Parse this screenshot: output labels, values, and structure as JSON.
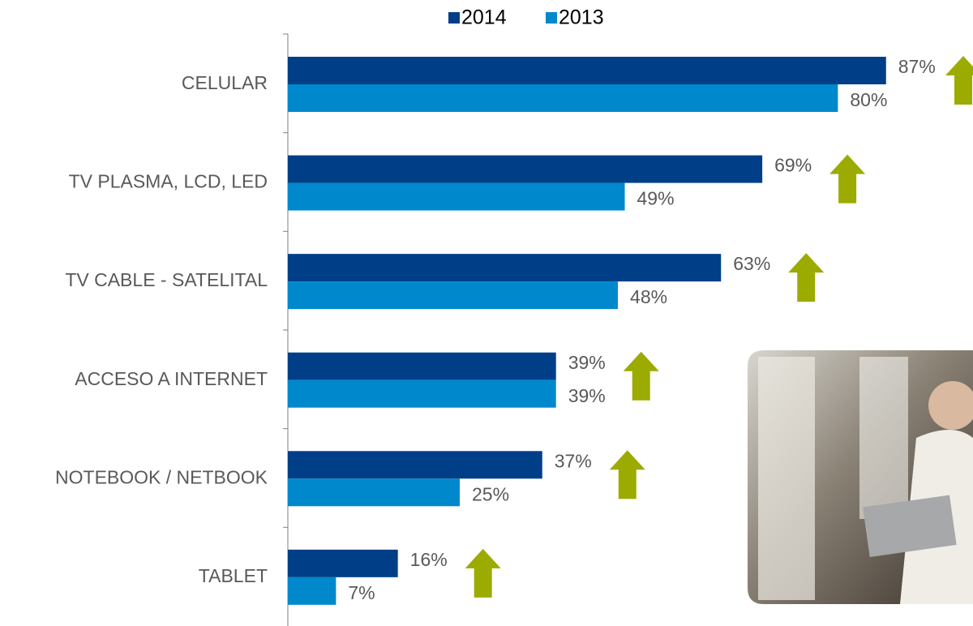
{
  "chart_data": {
    "type": "bar",
    "orientation": "horizontal",
    "categories": [
      "CELULAR",
      "TV PLASMA, LCD, LED",
      "TV CABLE - SATELITAL",
      "ACCESO A INTERNET",
      "NOTEBOOK / NETBOOK",
      "TABLET"
    ],
    "series": [
      {
        "name": "2014",
        "color": "#003f87",
        "values": [
          87,
          69,
          63,
          39,
          37,
          16
        ],
        "value_labels": [
          "87%",
          "69%",
          "63%",
          "39%",
          "37%",
          "16%"
        ]
      },
      {
        "name": "2013",
        "color": "#0088cc",
        "values": [
          80,
          49,
          48,
          39,
          25,
          7
        ],
        "value_labels": [
          "80%",
          "49%",
          "48%",
          "39%",
          "25%",
          "7%"
        ]
      }
    ],
    "legend": "top"
  }
}
